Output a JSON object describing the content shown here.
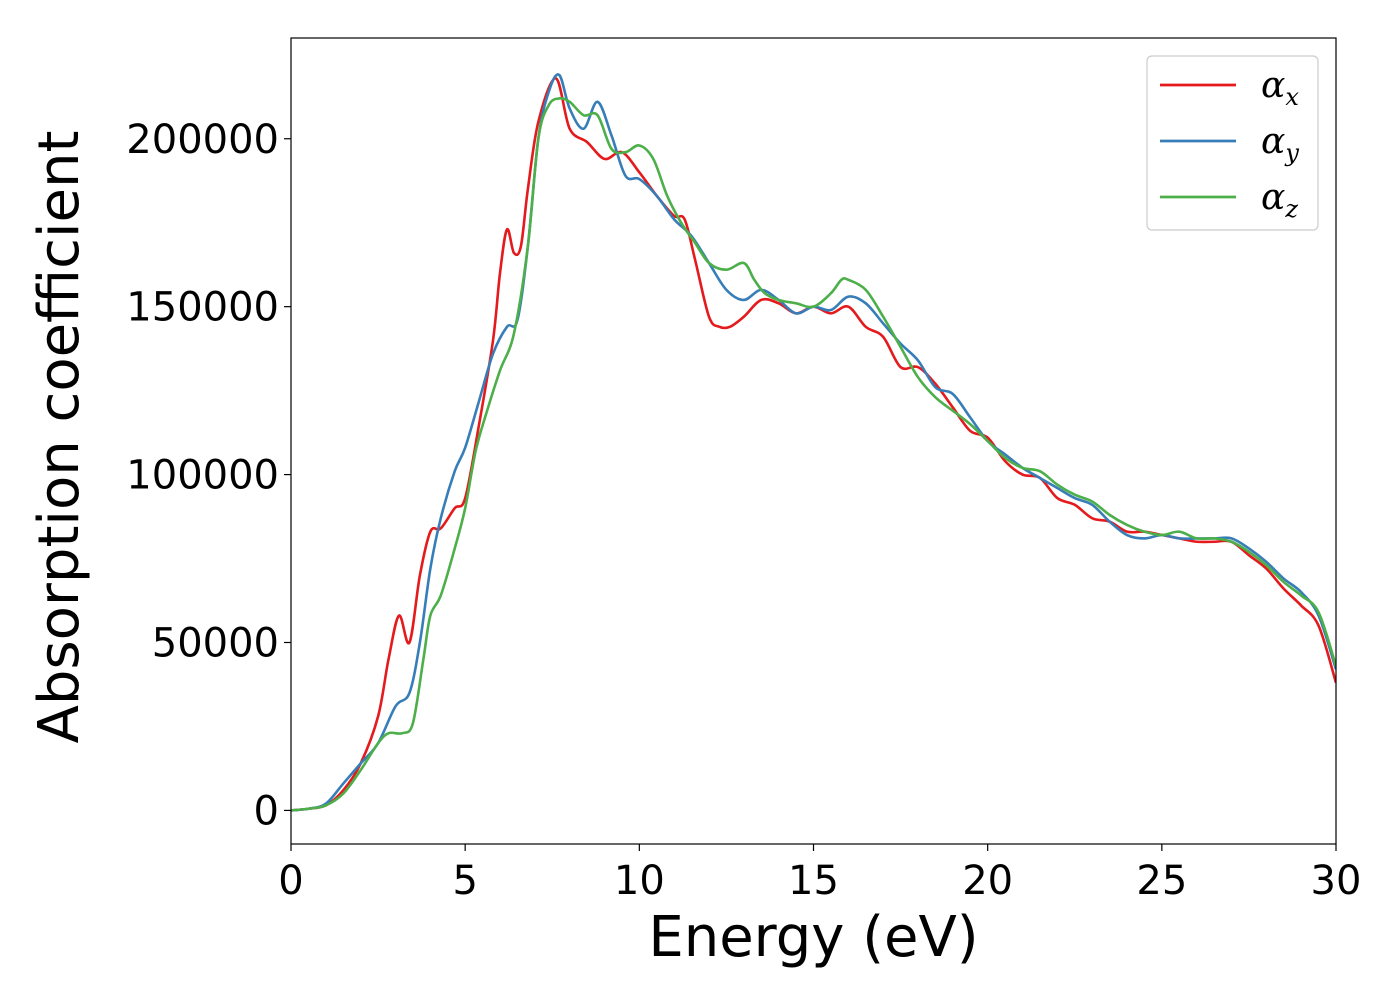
{
  "chart_data": {
    "type": "line",
    "xlabel": "Energy (eV)",
    "ylabel": "Absorption coefficient",
    "xlim": [
      0,
      30
    ],
    "ylim": [
      -10000,
      230000
    ],
    "xticks": [
      "0",
      "5",
      "10",
      "15",
      "20",
      "25",
      "30"
    ],
    "yticks": [
      "0",
      "50000",
      "100000",
      "150000",
      "200000"
    ],
    "grid": false,
    "legend_position": "top-right",
    "series": [
      {
        "name": "α_x",
        "symbol": "α",
        "subscript": "x",
        "color": "#e41a1c",
        "x": [
          0,
          0.5,
          1.0,
          1.5,
          2.0,
          2.5,
          2.8,
          3.1,
          3.4,
          3.7,
          4.0,
          4.3,
          4.7,
          5.0,
          5.4,
          5.8,
          6.0,
          6.2,
          6.4,
          6.6,
          6.8,
          7.1,
          7.6,
          8.0,
          8.5,
          9.0,
          9.5,
          10.0,
          10.5,
          11.0,
          11.3,
          11.6,
          12.0,
          12.3,
          12.6,
          13.0,
          13.5,
          14.0,
          14.5,
          15.0,
          15.5,
          16.0,
          16.5,
          17.0,
          17.5,
          18.0,
          18.5,
          19.0,
          19.5,
          20.0,
          20.5,
          21.0,
          21.5,
          22.0,
          22.5,
          23.0,
          23.5,
          24.0,
          24.5,
          25.0,
          25.5,
          26.0,
          26.5,
          27.0,
          27.5,
          28.0,
          28.5,
          29.0,
          29.5,
          30.0
        ],
        "values": [
          0,
          500,
          1500,
          6000,
          14000,
          28000,
          45000,
          58000,
          50000,
          70000,
          83000,
          84000,
          90000,
          93000,
          115000,
          140000,
          160000,
          173000,
          166000,
          168000,
          185000,
          205000,
          218000,
          203000,
          199000,
          194000,
          196000,
          190000,
          183000,
          177000,
          176000,
          164000,
          147000,
          144000,
          144000,
          147000,
          152000,
          151000,
          148000,
          150000,
          148000,
          150000,
          144000,
          141000,
          132000,
          132000,
          127000,
          120000,
          113000,
          111000,
          104000,
          100000,
          99000,
          93000,
          91000,
          87000,
          86000,
          83000,
          83000,
          82000,
          81000,
          80000,
          80000,
          80000,
          76000,
          72000,
          66000,
          61000,
          55000,
          38000
        ]
      },
      {
        "name": "α_y",
        "symbol": "α",
        "subscript": "y",
        "color": "#377eb8",
        "x": [
          0,
          0.5,
          1.0,
          1.5,
          2.0,
          2.5,
          3.0,
          3.4,
          3.7,
          4.0,
          4.3,
          4.7,
          5.0,
          5.4,
          5.8,
          6.2,
          6.5,
          6.8,
          7.1,
          7.4,
          7.7,
          8.0,
          8.4,
          8.8,
          9.2,
          9.6,
          10.0,
          10.5,
          11.0,
          11.5,
          12.0,
          12.5,
          13.0,
          13.5,
          14.0,
          14.5,
          15.0,
          15.5,
          16.0,
          16.5,
          17.0,
          17.5,
          18.0,
          18.5,
          19.0,
          19.5,
          20.0,
          20.5,
          21.0,
          21.5,
          22.0,
          22.5,
          23.0,
          23.5,
          24.0,
          24.5,
          25.0,
          25.5,
          26.0,
          26.5,
          27.0,
          27.5,
          28.0,
          28.5,
          29.0,
          29.5,
          30.0
        ],
        "values": [
          0,
          500,
          2000,
          8000,
          14000,
          20000,
          31000,
          35000,
          50000,
          72000,
          87000,
          101000,
          108000,
          122000,
          136000,
          144000,
          146000,
          168000,
          200000,
          214000,
          219000,
          209000,
          203000,
          211000,
          201000,
          189000,
          188000,
          183000,
          176000,
          171000,
          163000,
          155000,
          152000,
          155000,
          152000,
          148000,
          150000,
          149000,
          153000,
          151000,
          145000,
          139000,
          134000,
          126000,
          124000,
          117000,
          110000,
          106000,
          102000,
          99000,
          96000,
          93000,
          91000,
          86000,
          82000,
          81000,
          82000,
          81000,
          81000,
          81000,
          81000,
          78000,
          74000,
          69000,
          65000,
          58000,
          42000
        ]
      },
      {
        "name": "α_z",
        "symbol": "α",
        "subscript": "z",
        "color": "#4daf4a",
        "x": [
          0,
          0.5,
          1.0,
          1.5,
          2.0,
          2.5,
          2.8,
          3.2,
          3.5,
          3.8,
          4.0,
          4.3,
          4.7,
          5.0,
          5.3,
          5.6,
          6.0,
          6.4,
          6.8,
          7.1,
          7.4,
          7.7,
          8.0,
          8.4,
          8.8,
          9.2,
          9.6,
          10.0,
          10.4,
          10.8,
          11.2,
          11.6,
          12.0,
          12.5,
          13.0,
          13.3,
          13.6,
          14.0,
          14.5,
          15.0,
          15.5,
          15.8,
          16.0,
          16.5,
          17.0,
          17.5,
          18.0,
          18.5,
          19.0,
          19.5,
          20.0,
          20.5,
          21.0,
          21.5,
          22.0,
          22.5,
          23.0,
          23.5,
          24.0,
          24.5,
          25.0,
          25.5,
          26.0,
          26.5,
          27.0,
          27.5,
          28.0,
          28.5,
          29.0,
          29.5,
          30.0
        ],
        "values": [
          0,
          500,
          1500,
          5000,
          12000,
          20000,
          23000,
          23000,
          26000,
          45000,
          58000,
          64000,
          78000,
          90000,
          107000,
          118000,
          131000,
          142000,
          168000,
          200000,
          210000,
          212000,
          211000,
          207000,
          207000,
          197000,
          196000,
          198000,
          194000,
          183000,
          175000,
          169000,
          163000,
          161000,
          163000,
          158000,
          154000,
          152000,
          151000,
          150000,
          154000,
          158000,
          158000,
          155000,
          147000,
          138000,
          129000,
          123000,
          119000,
          115000,
          110000,
          105000,
          102000,
          101000,
          97000,
          94000,
          92000,
          88000,
          85000,
          83000,
          82000,
          83000,
          81000,
          81000,
          80000,
          77000,
          73000,
          68000,
          64000,
          59000,
          43000
        ]
      }
    ]
  }
}
